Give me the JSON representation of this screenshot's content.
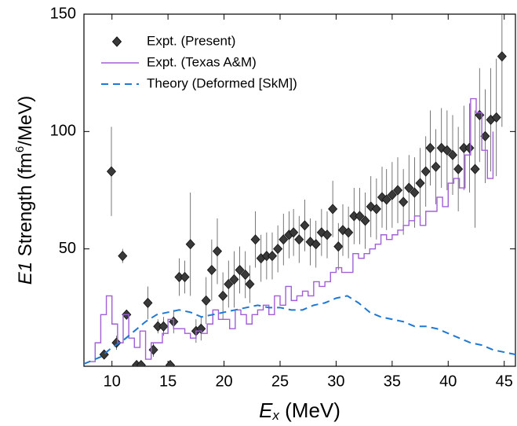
{
  "chart_data": {
    "type": "scatter",
    "xlabel": [
      "E",
      "x",
      " (MeV)"
    ],
    "ylabel": [
      "E1",
      " Strength (fm",
      "6",
      "/MeV)"
    ],
    "xlim": [
      7.5,
      46
    ],
    "xticks": [
      10,
      15,
      20,
      25,
      30,
      35,
      40,
      45
    ],
    "ylim": [
      0,
      150
    ],
    "yticks": [
      50,
      100,
      150
    ],
    "legend": "upper left",
    "series": [
      {
        "name": "Expt. (Present)",
        "style": "points",
        "color": "#3a3a3a",
        "x": [
          9.3,
          9.95,
          10.4,
          10.95,
          11.3,
          12.2,
          12.6,
          13.2,
          13.7,
          14.1,
          14.6,
          15.2,
          15.5,
          16.0,
          16.5,
          17.0,
          17.5,
          17.95,
          18.4,
          18.9,
          19.4,
          19.9,
          20.4,
          20.9,
          21.4,
          21.9,
          22.3,
          22.8,
          23.3,
          23.8,
          24.3,
          24.8,
          25.3,
          25.8,
          26.2,
          26.7,
          27.2,
          27.7,
          28.2,
          28.7,
          29.2,
          29.7,
          30.2,
          30.6,
          31.1,
          31.6,
          32.1,
          32.6,
          33.1,
          33.6,
          34.1,
          34.5,
          35.0,
          35.5,
          36.0,
          36.5,
          37.0,
          37.5,
          38.0,
          38.4,
          38.9,
          39.4,
          39.9,
          40.4,
          40.9,
          41.4,
          41.9,
          42.4,
          42.8,
          43.3,
          43.8,
          44.3,
          44.8
        ],
        "values": [
          5,
          83,
          10,
          47,
          22,
          0.5,
          0.5,
          27,
          7,
          17,
          17,
          0.5,
          19,
          38,
          38,
          52,
          15,
          16,
          28,
          41,
          49,
          30,
          35,
          37,
          41,
          39,
          35,
          54,
          46,
          47,
          47,
          50,
          54,
          56,
          57,
          54,
          60,
          53,
          52,
          57,
          56,
          67,
          51,
          58,
          57,
          64,
          64,
          62,
          68,
          67,
          72,
          71,
          73,
          75,
          70,
          76,
          74,
          78,
          83,
          93,
          85,
          93,
          92,
          90,
          84,
          93,
          93,
          84,
          107,
          98,
          105,
          106,
          132
        ],
        "errors": [
          1,
          19,
          3,
          3,
          2,
          0,
          0,
          7,
          3,
          3,
          4,
          0,
          5,
          8,
          7,
          22,
          5,
          5,
          10,
          13,
          14,
          10,
          10,
          12,
          10,
          10,
          8,
          12,
          10,
          10,
          10,
          10,
          11,
          10,
          10,
          10,
          11,
          10,
          10,
          10,
          10,
          12,
          10,
          11,
          11,
          12,
          12,
          12,
          13,
          13,
          13,
          13,
          14,
          14,
          14,
          14,
          15,
          15,
          15,
          16,
          16,
          17,
          17,
          17,
          18,
          18,
          19,
          25,
          20,
          20,
          22,
          25,
          30
        ]
      },
      {
        "name": "Expt. (Texas A&M)",
        "style": "steps",
        "color": "#a05fd6",
        "x": [
          8,
          8.5,
          9,
          9.5,
          10,
          10.5,
          11,
          11.5,
          12,
          12.5,
          13,
          13.5,
          14,
          14.5,
          15,
          15.5,
          16,
          16.5,
          17,
          17.5,
          18,
          18.5,
          19,
          19.5,
          20,
          20.5,
          21,
          21.5,
          22,
          22.5,
          23,
          23.5,
          24,
          24.5,
          25,
          25.5,
          26,
          26.5,
          27,
          27.5,
          28,
          28.5,
          29,
          29.5,
          30,
          30.5,
          31,
          31.5,
          32,
          32.5,
          33,
          33.5,
          34,
          34.5,
          35,
          35.5,
          36,
          36.5,
          37,
          37.5,
          38,
          38.5,
          39,
          39.5,
          40,
          40.5,
          41,
          41.5,
          42,
          42.5,
          43,
          43.5,
          44
        ],
        "values": [
          2,
          10,
          22,
          30,
          18,
          10,
          22,
          12,
          8,
          15,
          3,
          10,
          10,
          14,
          20,
          16,
          16,
          14,
          12,
          15,
          14,
          18,
          24,
          20,
          20,
          16,
          24,
          22,
          18,
          22,
          24,
          26,
          22,
          30,
          26,
          34,
          28,
          30,
          32,
          30,
          36,
          34,
          36,
          40,
          42,
          40,
          40,
          48,
          46,
          48,
          50,
          52,
          56,
          54,
          56,
          58,
          60,
          62,
          64,
          60,
          66,
          66,
          72,
          68,
          78,
          80,
          76,
          90,
          114,
          108,
          92,
          80,
          100
        ]
      },
      {
        "name": "Theory (Deformed [SkM])",
        "style": "dashed",
        "color": "#1f78d1",
        "x": [
          7.5,
          9,
          10,
          11,
          12,
          13,
          14,
          15,
          16,
          17,
          18,
          19,
          20,
          21,
          22,
          23,
          24,
          25,
          26,
          27,
          28,
          29,
          30,
          31,
          32,
          33,
          34,
          35,
          36,
          37,
          38,
          39,
          40,
          41,
          42,
          43,
          44,
          45,
          46
        ],
        "values": [
          1,
          4,
          8,
          11,
          15,
          19,
          22,
          23,
          24,
          23,
          21,
          22,
          23,
          24,
          25,
          26,
          25,
          25,
          24,
          24,
          26,
          27,
          29,
          30,
          27,
          23,
          21,
          20,
          19,
          17,
          17,
          16,
          14,
          12,
          10,
          9,
          7,
          6,
          5
        ]
      }
    ]
  }
}
